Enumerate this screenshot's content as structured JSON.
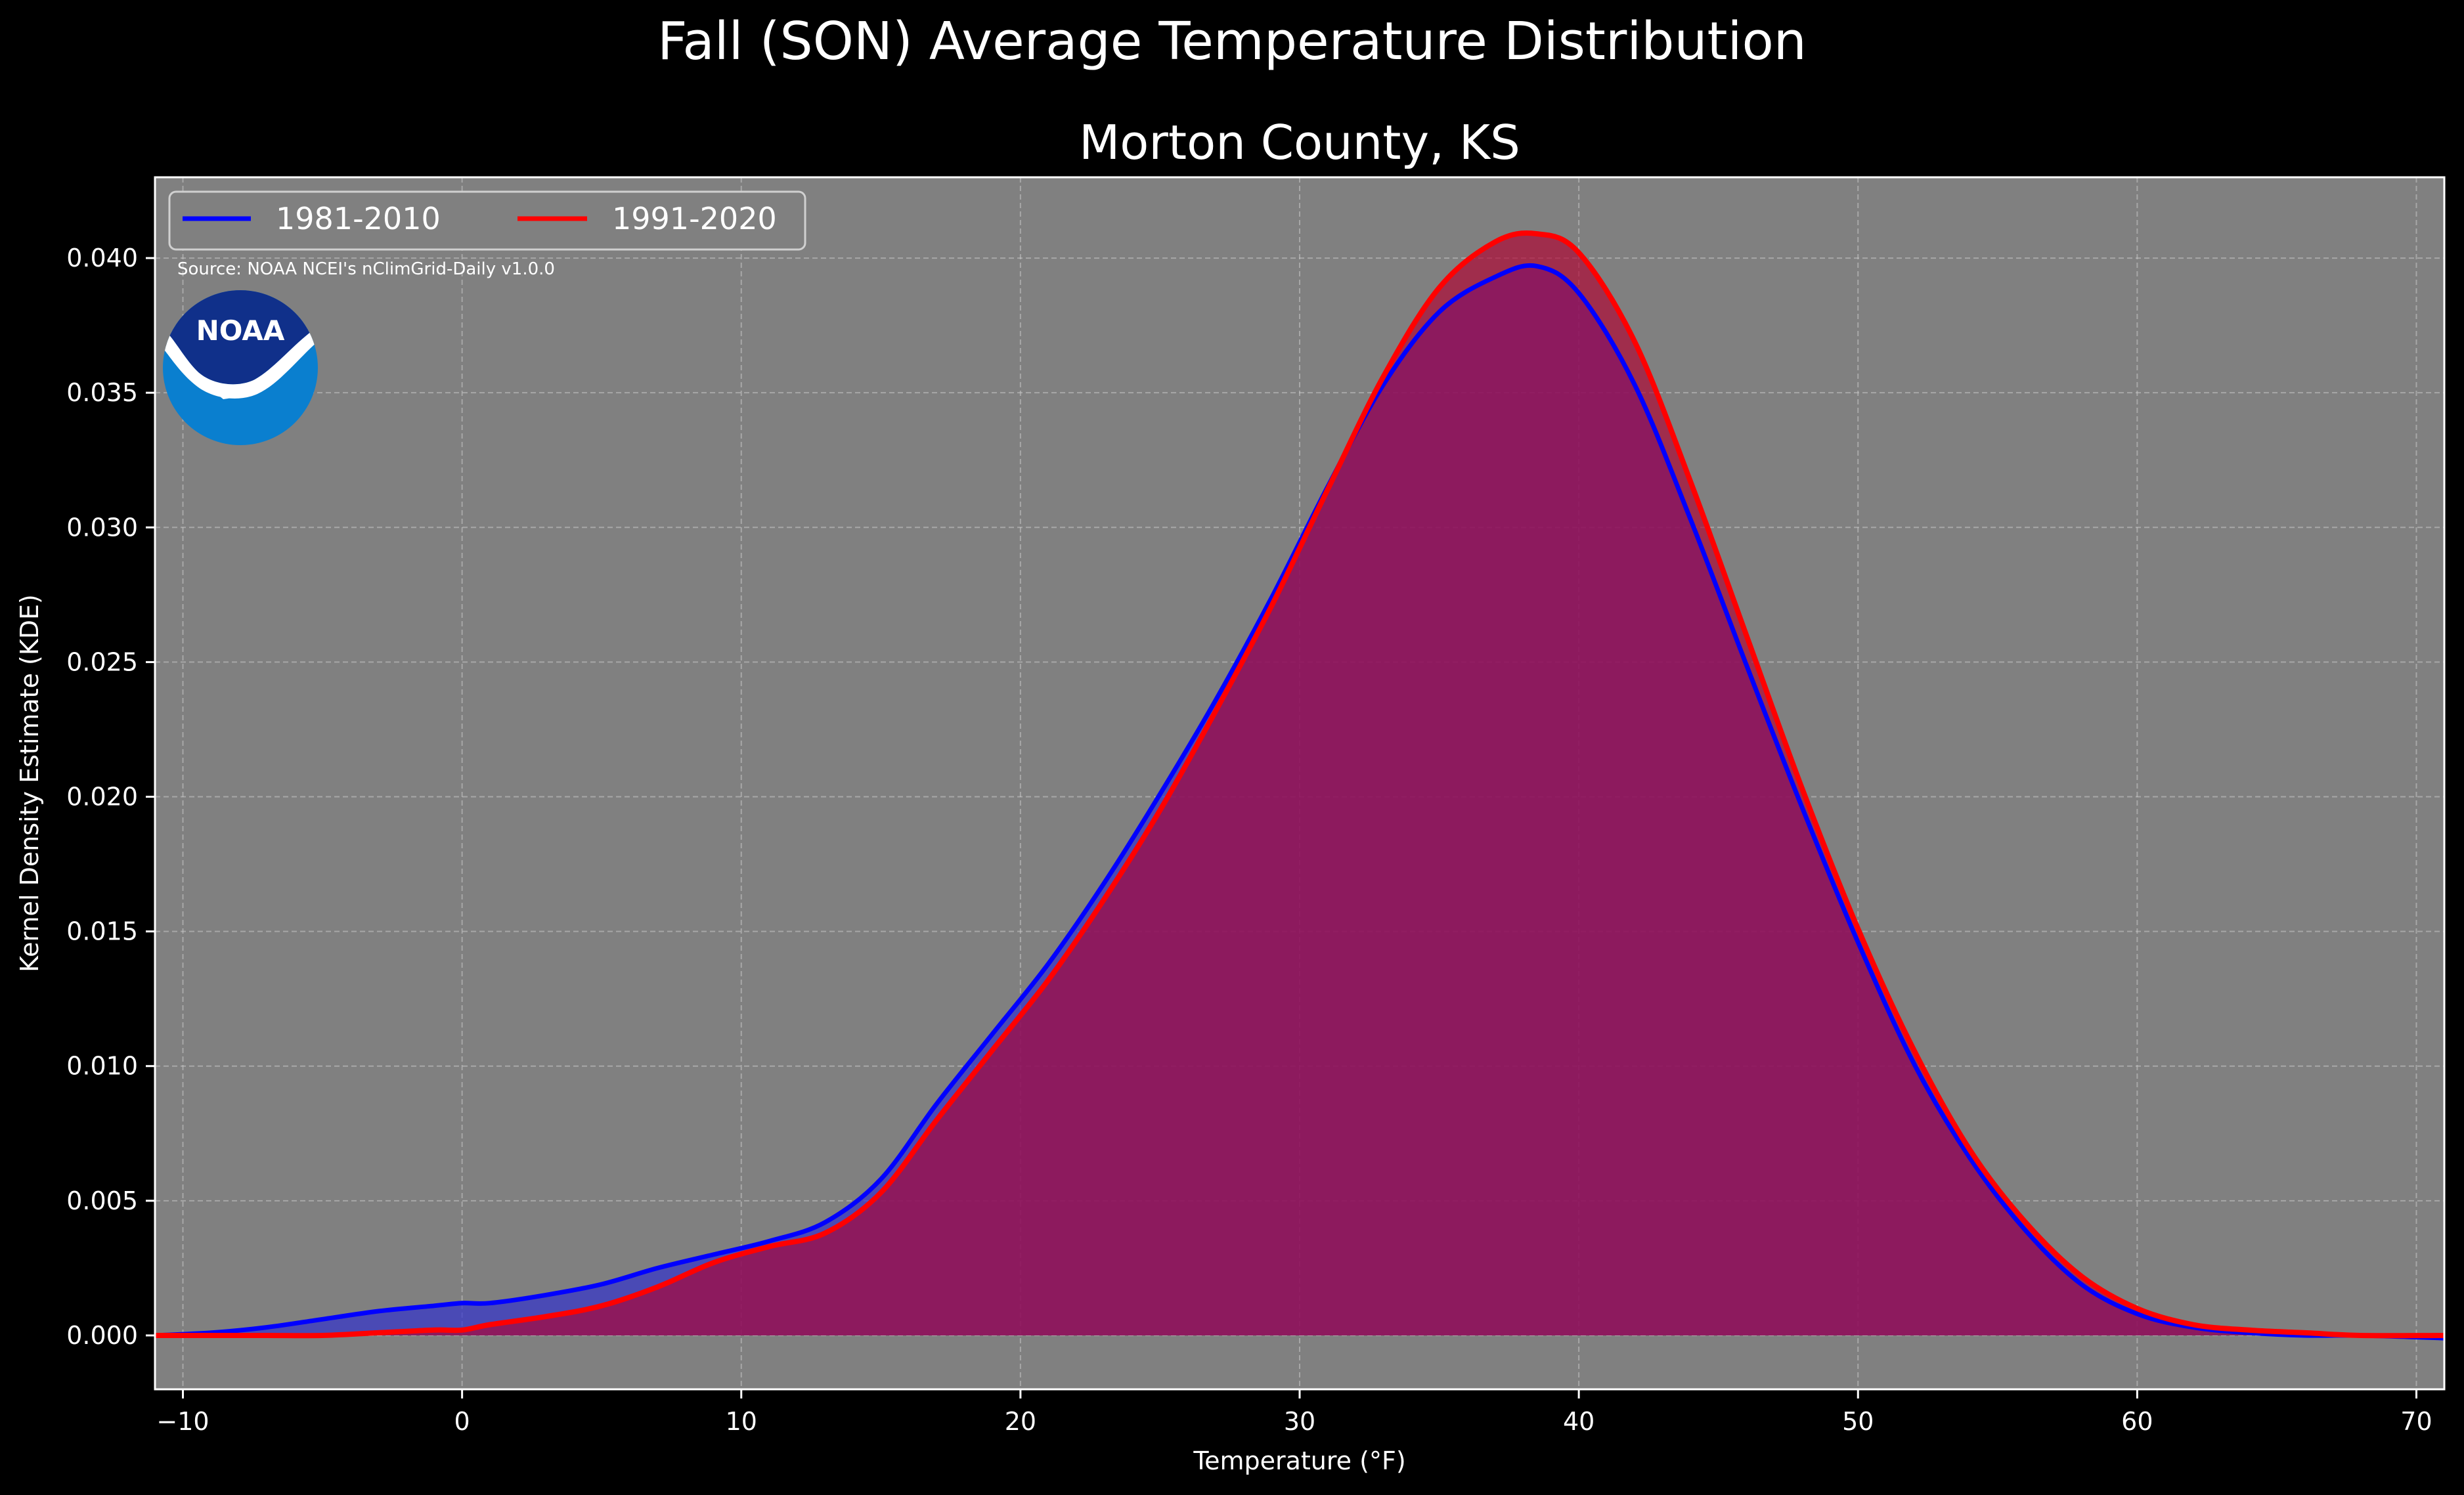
{
  "chart_data": {
    "type": "area",
    "title": "Fall (SON) Average Temperature Distribution",
    "subtitle": "Morton County, KS",
    "xlabel": "Temperature (°F)",
    "ylabel": "Kernel Density Estimate (KDE)",
    "xlim": [
      -11,
      71
    ],
    "ylim": [
      -0.002,
      0.043
    ],
    "x_ticks": [
      -10,
      0,
      10,
      20,
      30,
      40,
      50,
      60,
      70
    ],
    "x_tick_labels": [
      "−10",
      "0",
      "10",
      "20",
      "30",
      "40",
      "50",
      "60",
      "70"
    ],
    "y_ticks": [
      0,
      0.005,
      0.01,
      0.015,
      0.02,
      0.025,
      0.03,
      0.035,
      0.04
    ],
    "y_tick_labels": [
      "0.000",
      "0.005",
      "0.010",
      "0.015",
      "0.020",
      "0.025",
      "0.030",
      "0.035",
      "0.040"
    ],
    "grid": true,
    "legend_position": "top-left",
    "annotation": "Source: NOAA NCEI's nClimGrid-Daily v1.0.0",
    "background_color": "#808080",
    "series": [
      {
        "name": "1981-2010",
        "color": "#0000ff",
        "fill_color": "#3333cc",
        "x": [
          -11,
          -9,
          -7,
          -5,
          -3,
          -1,
          0,
          1,
          3,
          5,
          7,
          9,
          11,
          13,
          15,
          17,
          19,
          21,
          23,
          25,
          27,
          29,
          31,
          33,
          35,
          37,
          38.5,
          40,
          42,
          44,
          46,
          48,
          50,
          52,
          54,
          56,
          58,
          60,
          62,
          64,
          66,
          68,
          71
        ],
        "values": [
          0.0,
          0.0001,
          0.0003,
          0.0006,
          0.0009,
          0.0011,
          0.0012,
          0.0012,
          0.0015,
          0.0019,
          0.0025,
          0.003,
          0.0035,
          0.0042,
          0.0058,
          0.0086,
          0.0112,
          0.0138,
          0.0168,
          0.0201,
          0.0236,
          0.0274,
          0.0315,
          0.0353,
          0.038,
          0.0393,
          0.0397,
          0.0387,
          0.0353,
          0.0303,
          0.0249,
          0.0196,
          0.0146,
          0.0101,
          0.0066,
          0.0039,
          0.0019,
          0.0008,
          0.0003,
          0.0001,
          0.0,
          0.0,
          -0.0001
        ]
      },
      {
        "name": "1991-2020",
        "color": "#ff0000",
        "fill_color": "#b00030",
        "x": [
          -11,
          -9,
          -7,
          -5,
          -3,
          -1,
          0,
          1,
          3,
          5,
          7,
          9,
          11,
          13,
          15,
          17,
          19,
          21,
          23,
          25,
          27,
          29,
          31,
          33,
          35,
          37,
          38.5,
          40,
          42,
          44,
          46,
          48,
          50,
          52,
          54,
          56,
          58,
          60,
          62,
          64,
          66,
          68,
          71
        ],
        "values": [
          0.0,
          0.0,
          0.0,
          0.0,
          0.0001,
          0.0002,
          0.0002,
          0.0004,
          0.0007,
          0.0011,
          0.0018,
          0.0027,
          0.0033,
          0.0038,
          0.0053,
          0.008,
          0.0106,
          0.0132,
          0.0162,
          0.0195,
          0.0232,
          0.0271,
          0.0314,
          0.0356,
          0.0389,
          0.0406,
          0.0409,
          0.0402,
          0.0369,
          0.0317,
          0.026,
          0.0203,
          0.0151,
          0.0106,
          0.0069,
          0.0042,
          0.0022,
          0.001,
          0.0004,
          0.0002,
          0.0001,
          0.0,
          0.0
        ]
      }
    ]
  },
  "logo": {
    "text": "NOAA",
    "name": "noaa-logo"
  }
}
